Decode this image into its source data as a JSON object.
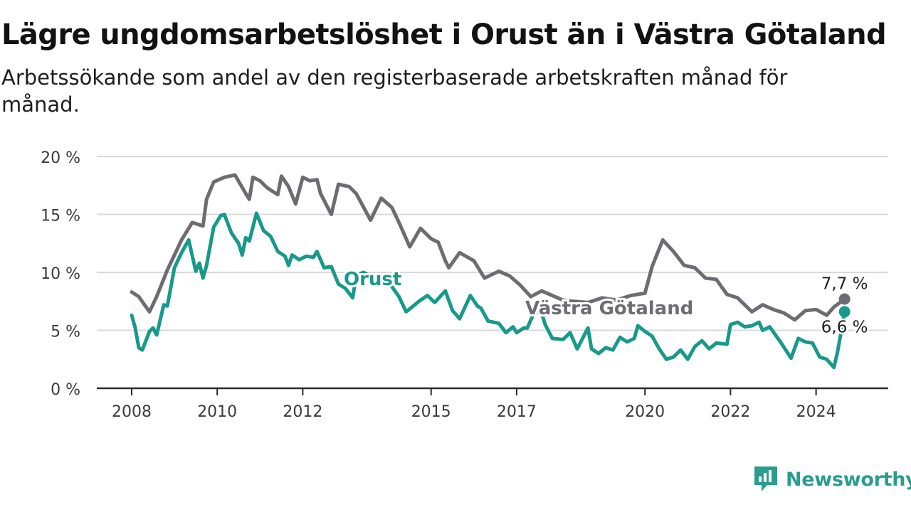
{
  "header": {
    "title": "Lägre ungdomsarbetslöshet i Orust än i Västra Götaland",
    "subtitle": "Arbetssökande som andel av den registerbaserade arbetskraften månad för månad."
  },
  "brand": {
    "name": "Newsworthy",
    "icon": "newsworthy-logo-icon",
    "color": "#2a9d8f"
  },
  "chart_data": {
    "type": "line",
    "x_axis": {
      "ticks": [
        "2008",
        "2010",
        "2012",
        "2015",
        "2017",
        "2020",
        "2022",
        "2024"
      ],
      "range": [
        "2008-01",
        "2024-09"
      ]
    },
    "y_axis": {
      "ticks": [
        "0 %",
        "5 %",
        "10 %",
        "15 %",
        "20 %"
      ],
      "range": [
        0,
        20
      ],
      "unit": "%"
    },
    "grid": "horizontal",
    "legend": "inline labels",
    "series": [
      {
        "name": "Västra Götaland",
        "color": "#6d6c72",
        "end_label": "7,7 %",
        "points": [
          [
            "2008-01",
            8.3
          ],
          [
            "2008-03",
            7.9
          ],
          [
            "2008-06",
            6.6
          ],
          [
            "2008-08",
            7.9
          ],
          [
            "2008-11",
            10.2
          ],
          [
            "2009-03",
            12.8
          ],
          [
            "2009-06",
            14.3
          ],
          [
            "2009-09",
            14.0
          ],
          [
            "2009-10",
            16.3
          ],
          [
            "2009-12",
            17.8
          ],
          [
            "2010-03",
            18.2
          ],
          [
            "2010-06",
            18.4
          ],
          [
            "2010-09",
            16.8
          ],
          [
            "2010-10",
            16.3
          ],
          [
            "2010-11",
            18.2
          ],
          [
            "2011-01",
            17.9
          ],
          [
            "2011-03",
            17.3
          ],
          [
            "2011-06",
            16.7
          ],
          [
            "2011-07",
            18.3
          ],
          [
            "2011-09",
            17.4
          ],
          [
            "2011-11",
            15.9
          ],
          [
            "2012-01",
            18.2
          ],
          [
            "2012-03",
            17.9
          ],
          [
            "2012-05",
            18.0
          ],
          [
            "2012-06",
            16.8
          ],
          [
            "2012-09",
            15.0
          ],
          [
            "2012-11",
            17.6
          ],
          [
            "2013-02",
            17.4
          ],
          [
            "2013-04",
            16.8
          ],
          [
            "2013-08",
            14.5
          ],
          [
            "2013-11",
            16.4
          ],
          [
            "2014-02",
            15.6
          ],
          [
            "2014-04",
            14.3
          ],
          [
            "2014-07",
            12.2
          ],
          [
            "2014-10",
            13.8
          ],
          [
            "2015-01",
            12.9
          ],
          [
            "2015-03",
            12.6
          ],
          [
            "2015-05",
            11.0
          ],
          [
            "2015-06",
            10.4
          ],
          [
            "2015-09",
            11.7
          ],
          [
            "2016-01",
            11.0
          ],
          [
            "2016-04",
            9.5
          ],
          [
            "2016-06",
            9.8
          ],
          [
            "2016-08",
            10.1
          ],
          [
            "2016-11",
            9.7
          ],
          [
            "2017-02",
            8.9
          ],
          [
            "2017-05",
            7.9
          ],
          [
            "2017-08",
            8.4
          ],
          [
            "2017-11",
            8.0
          ],
          [
            "2018-02",
            7.6
          ],
          [
            "2018-05",
            7.5
          ],
          [
            "2018-09",
            7.4
          ],
          [
            "2019-01",
            7.8
          ],
          [
            "2019-05",
            7.6
          ],
          [
            "2019-09",
            8.0
          ],
          [
            "2020-01",
            8.2
          ],
          [
            "2020-03",
            10.5
          ],
          [
            "2020-06",
            12.8
          ],
          [
            "2020-09",
            11.8
          ],
          [
            "2020-12",
            10.6
          ],
          [
            "2021-03",
            10.4
          ],
          [
            "2021-06",
            9.5
          ],
          [
            "2021-09",
            9.4
          ],
          [
            "2021-12",
            8.1
          ],
          [
            "2022-03",
            7.8
          ],
          [
            "2022-07",
            6.6
          ],
          [
            "2022-10",
            7.2
          ],
          [
            "2023-01",
            6.8
          ],
          [
            "2023-04",
            6.5
          ],
          [
            "2023-07",
            5.9
          ],
          [
            "2023-10",
            6.7
          ],
          [
            "2024-01",
            6.8
          ],
          [
            "2024-04",
            6.3
          ],
          [
            "2024-06",
            7.0
          ],
          [
            "2024-09",
            7.7
          ]
        ]
      },
      {
        "name": "Orust",
        "color": "#18998b",
        "end_label": "6,6 %",
        "points": [
          [
            "2008-01",
            6.3
          ],
          [
            "2008-02",
            5.2
          ],
          [
            "2008-03",
            3.5
          ],
          [
            "2008-04",
            3.3
          ],
          [
            "2008-06",
            4.9
          ],
          [
            "2008-07",
            5.2
          ],
          [
            "2008-08",
            4.6
          ],
          [
            "2008-10",
            7.2
          ],
          [
            "2008-11",
            7.1
          ],
          [
            "2009-01",
            10.4
          ],
          [
            "2009-03",
            11.7
          ],
          [
            "2009-05",
            12.8
          ],
          [
            "2009-07",
            10.1
          ],
          [
            "2009-08",
            10.8
          ],
          [
            "2009-09",
            9.5
          ],
          [
            "2009-10",
            10.6
          ],
          [
            "2009-12",
            13.9
          ],
          [
            "2010-02",
            14.9
          ],
          [
            "2010-03",
            15.0
          ],
          [
            "2010-05",
            13.4
          ],
          [
            "2010-07",
            12.5
          ],
          [
            "2010-08",
            11.5
          ],
          [
            "2010-09",
            13.0
          ],
          [
            "2010-10",
            12.7
          ],
          [
            "2010-12",
            15.1
          ],
          [
            "2011-02",
            13.6
          ],
          [
            "2011-04",
            13.1
          ],
          [
            "2011-06",
            11.8
          ],
          [
            "2011-08",
            11.4
          ],
          [
            "2011-09",
            10.6
          ],
          [
            "2011-10",
            11.5
          ],
          [
            "2011-12",
            11.1
          ],
          [
            "2012-02",
            11.4
          ],
          [
            "2012-04",
            11.3
          ],
          [
            "2012-05",
            11.8
          ],
          [
            "2012-07",
            10.4
          ],
          [
            "2012-09",
            10.5
          ],
          [
            "2012-11",
            9.0
          ],
          [
            "2013-01",
            8.6
          ],
          [
            "2013-03",
            7.8
          ],
          [
            "2013-04",
            9.7
          ],
          [
            "2013-06",
            10.0
          ],
          [
            "2013-08",
            9.7
          ],
          [
            "2013-10",
            9.5
          ],
          [
            "2014-01",
            9.2
          ],
          [
            "2014-04",
            7.9
          ],
          [
            "2014-06",
            6.6
          ],
          [
            "2014-08",
            7.1
          ],
          [
            "2014-10",
            7.6
          ],
          [
            "2014-12",
            8.0
          ],
          [
            "2015-02",
            7.4
          ],
          [
            "2015-05",
            8.4
          ],
          [
            "2015-07",
            6.7
          ],
          [
            "2015-09",
            6.0
          ],
          [
            "2015-12",
            8.0
          ],
          [
            "2016-02",
            7.1
          ],
          [
            "2016-03",
            6.9
          ],
          [
            "2016-05",
            5.8
          ],
          [
            "2016-08",
            5.6
          ],
          [
            "2016-10",
            4.8
          ],
          [
            "2016-12",
            5.3
          ],
          [
            "2017-01",
            4.8
          ],
          [
            "2017-03",
            5.2
          ],
          [
            "2017-04",
            5.2
          ],
          [
            "2017-06",
            6.6
          ],
          [
            "2017-08",
            6.5
          ],
          [
            "2017-09",
            5.5
          ],
          [
            "2017-11",
            4.3
          ],
          [
            "2018-02",
            4.2
          ],
          [
            "2018-04",
            4.8
          ],
          [
            "2018-06",
            3.4
          ],
          [
            "2018-09",
            5.2
          ],
          [
            "2018-10",
            3.4
          ],
          [
            "2018-12",
            3.0
          ],
          [
            "2019-02",
            3.5
          ],
          [
            "2019-04",
            3.3
          ],
          [
            "2019-06",
            4.4
          ],
          [
            "2019-08",
            4.0
          ],
          [
            "2019-10",
            4.3
          ],
          [
            "2019-11",
            5.4
          ],
          [
            "2020-01",
            4.9
          ],
          [
            "2020-03",
            4.5
          ],
          [
            "2020-05",
            3.4
          ],
          [
            "2020-07",
            2.5
          ],
          [
            "2020-09",
            2.7
          ],
          [
            "2020-11",
            3.3
          ],
          [
            "2021-01",
            2.5
          ],
          [
            "2021-03",
            3.6
          ],
          [
            "2021-05",
            4.1
          ],
          [
            "2021-07",
            3.4
          ],
          [
            "2021-09",
            3.9
          ],
          [
            "2021-12",
            3.8
          ],
          [
            "2022-01",
            5.5
          ],
          [
            "2022-03",
            5.7
          ],
          [
            "2022-05",
            5.3
          ],
          [
            "2022-07",
            5.4
          ],
          [
            "2022-09",
            5.7
          ],
          [
            "2022-10",
            5.0
          ],
          [
            "2022-12",
            5.3
          ],
          [
            "2023-03",
            4.0
          ],
          [
            "2023-06",
            2.6
          ],
          [
            "2023-08",
            4.3
          ],
          [
            "2023-10",
            4.0
          ],
          [
            "2023-12",
            3.9
          ],
          [
            "2024-02",
            2.7
          ],
          [
            "2024-04",
            2.5
          ],
          [
            "2024-06",
            1.8
          ],
          [
            "2024-07",
            3.1
          ],
          [
            "2024-09",
            6.6
          ]
        ]
      }
    ]
  }
}
